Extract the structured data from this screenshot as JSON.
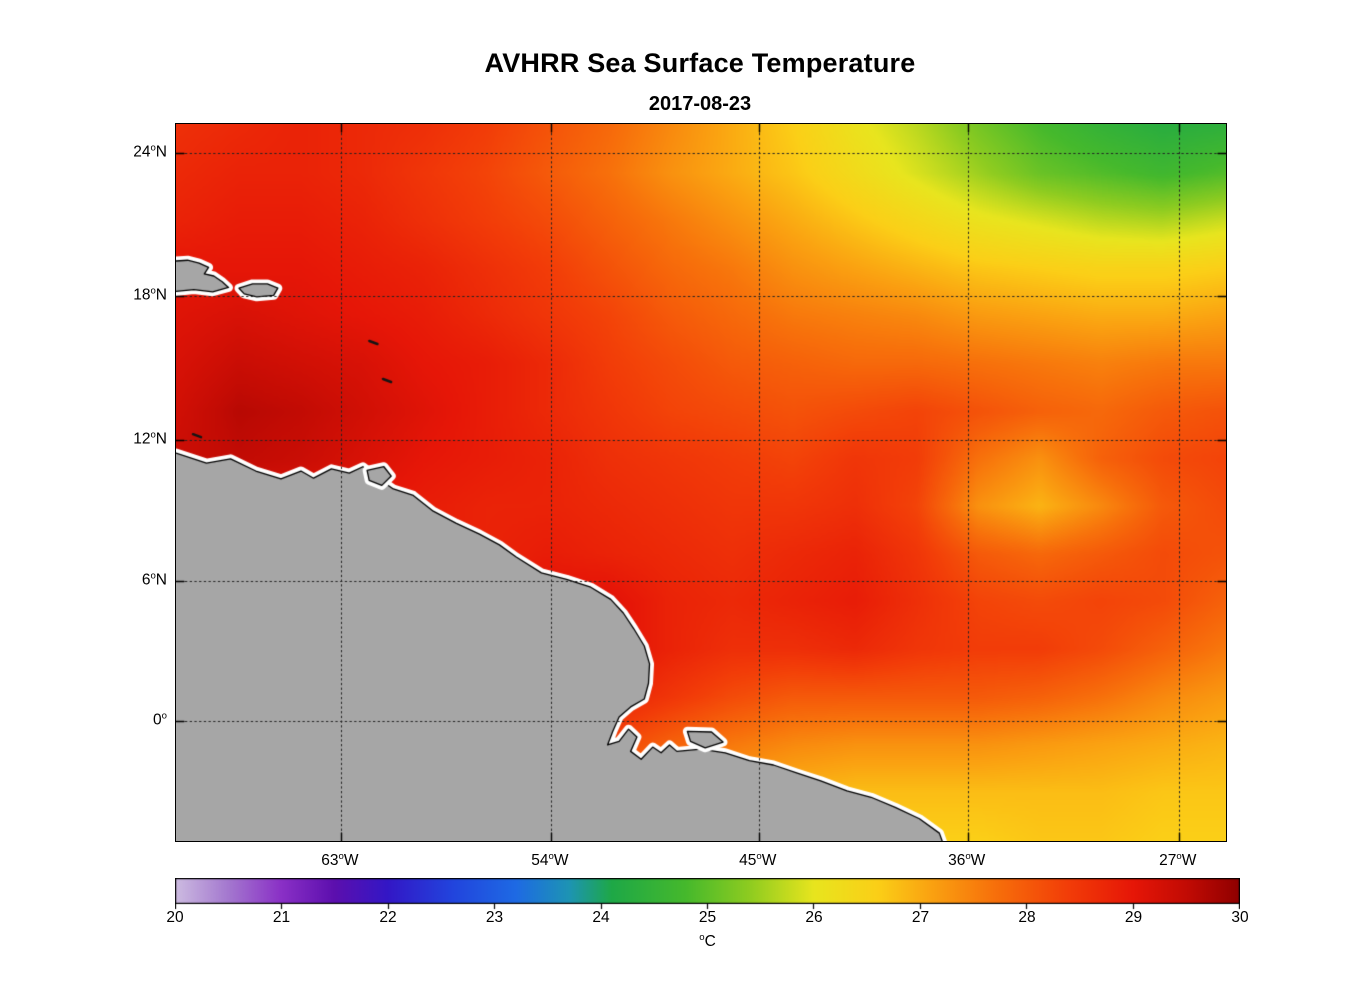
{
  "title": "AVHRR Sea Surface Temperature",
  "subtitle": "2017-08-23",
  "axes": {
    "lat_ticks": [
      {
        "num": "24",
        "deg": "o",
        "hemi": "N",
        "frac": 0.041
      },
      {
        "num": "18",
        "deg": "o",
        "hemi": "N",
        "frac": 0.24
      },
      {
        "num": "12",
        "deg": "o",
        "hemi": "N",
        "frac": 0.441
      },
      {
        "num": "6",
        "deg": "o",
        "hemi": "N",
        "frac": 0.637
      },
      {
        "num": "0",
        "deg": "o",
        "hemi": "",
        "frac": 0.833
      }
    ],
    "lon_ticks": [
      {
        "num": "63",
        "deg": "o",
        "hemi": "W",
        "frac": 0.157
      },
      {
        "num": "54",
        "deg": "o",
        "hemi": "W",
        "frac": 0.357
      },
      {
        "num": "45",
        "deg": "o",
        "hemi": "W",
        "frac": 0.555
      },
      {
        "num": "36",
        "deg": "o",
        "hemi": "W",
        "frac": 0.754
      },
      {
        "num": "27",
        "deg": "o",
        "hemi": "W",
        "frac": 0.955
      }
    ]
  },
  "colorbar": {
    "ticks": [
      "20",
      "21",
      "22",
      "23",
      "24",
      "25",
      "26",
      "27",
      "28",
      "29",
      "30"
    ],
    "unit_deg": "o",
    "unit_letter": "C",
    "range": [
      20,
      30
    ],
    "stops": [
      {
        "t": 20.0,
        "c": "#cdbce1"
      },
      {
        "t": 20.5,
        "c": "#a478cf"
      },
      {
        "t": 21.0,
        "c": "#8a30c6"
      },
      {
        "t": 21.5,
        "c": "#5c0fae"
      },
      {
        "t": 22.0,
        "c": "#3317c6"
      },
      {
        "t": 22.6,
        "c": "#2244dd"
      },
      {
        "t": 23.2,
        "c": "#1e6ae4"
      },
      {
        "t": 23.7,
        "c": "#1d94b4"
      },
      {
        "t": 24.1,
        "c": "#1ea847"
      },
      {
        "t": 24.8,
        "c": "#46b92c"
      },
      {
        "t": 25.4,
        "c": "#8fcc20"
      },
      {
        "t": 26.0,
        "c": "#e8e51e"
      },
      {
        "t": 26.6,
        "c": "#fbcf17"
      },
      {
        "t": 27.1,
        "c": "#faa211"
      },
      {
        "t": 27.7,
        "c": "#f7700b"
      },
      {
        "t": 28.4,
        "c": "#f23c08"
      },
      {
        "t": 29.0,
        "c": "#e61607"
      },
      {
        "t": 29.5,
        "c": "#c20b04"
      },
      {
        "t": 30.0,
        "c": "#8f0000"
      }
    ]
  },
  "chart_data": {
    "type": "heatmap",
    "title": "AVHRR Sea Surface Temperature",
    "subtitle": "2017-08-23",
    "lon_ticks_deg_w": [
      63,
      54,
      45,
      36,
      27
    ],
    "lat_ticks_deg_n": [
      24,
      18,
      12,
      6,
      0
    ],
    "lon_range_deg_w": [
      70.2,
      25.1
    ],
    "lat_range_deg_n": [
      -5.3,
      25.3
    ],
    "colorbar_range": [
      20,
      30
    ],
    "colorbar_label": "°C",
    "colorbar_tick_values": [
      20,
      21,
      22,
      23,
      24,
      25,
      26,
      27,
      28,
      29,
      30
    ],
    "grid": "dotted",
    "land_color": "#a6a6a6",
    "coast_halo_color": "#ffffff",
    "sst_grid_c": {
      "rows": 16,
      "cols": 18,
      "values": [
        [
          28.6,
          28.7,
          28.8,
          28.7,
          28.6,
          28.4,
          28.1,
          27.8,
          27.4,
          27.0,
          26.6,
          26.1,
          25.7,
          25.2,
          24.8,
          24.5,
          24.3,
          24.4
        ],
        [
          28.7,
          28.8,
          28.8,
          28.7,
          28.5,
          28.3,
          28.0,
          27.7,
          27.3,
          27.0,
          26.7,
          26.3,
          25.9,
          25.5,
          25.1,
          24.9,
          24.7,
          24.9
        ],
        [
          28.8,
          28.9,
          28.9,
          28.8,
          28.6,
          28.4,
          28.2,
          27.9,
          27.6,
          27.3,
          27.0,
          26.7,
          26.4,
          26.1,
          25.9,
          25.7,
          25.6,
          25.8
        ],
        [
          29.0,
          29.0,
          29.0,
          28.9,
          28.8,
          28.6,
          28.4,
          28.1,
          27.8,
          27.6,
          27.3,
          27.1,
          26.9,
          26.7,
          26.6,
          26.5,
          26.5,
          26.6
        ],
        [
          29.1,
          29.2,
          29.1,
          29.0,
          28.9,
          28.7,
          28.5,
          28.3,
          28.0,
          27.8,
          27.6,
          27.5,
          27.4,
          27.2,
          27.1,
          27.0,
          27.0,
          27.1
        ],
        [
          29.2,
          29.4,
          29.3,
          29.2,
          29.0,
          28.9,
          28.7,
          28.4,
          28.2,
          28.0,
          27.9,
          27.8,
          27.8,
          27.7,
          27.6,
          27.5,
          27.6,
          27.6
        ],
        [
          29.3,
          29.6,
          29.5,
          29.3,
          29.1,
          28.9,
          28.7,
          28.5,
          28.3,
          28.2,
          28.1,
          28.2,
          28.3,
          28.1,
          27.9,
          27.8,
          28.0,
          28.1
        ],
        [
          29.4,
          29.5,
          29.4,
          29.2,
          29.0,
          28.9,
          28.8,
          28.6,
          28.5,
          28.4,
          28.3,
          28.5,
          28.4,
          27.7,
          27.3,
          27.9,
          28.2,
          28.3
        ],
        [
          29.2,
          29.2,
          29.1,
          29.0,
          28.9,
          28.8,
          28.8,
          28.7,
          28.6,
          28.5,
          28.5,
          28.6,
          28.3,
          27.3,
          26.9,
          27.4,
          28.0,
          28.2
        ],
        [
          28.8,
          28.8,
          28.8,
          28.9,
          28.9,
          28.8,
          28.9,
          28.8,
          28.7,
          28.6,
          28.7,
          28.8,
          28.5,
          28.0,
          27.8,
          28.0,
          28.2,
          28.1
        ],
        [
          28.5,
          28.5,
          28.6,
          28.7,
          28.8,
          28.8,
          29.1,
          29.1,
          28.8,
          28.7,
          28.8,
          28.9,
          28.6,
          28.3,
          28.2,
          28.3,
          28.2,
          27.9
        ],
        [
          28.3,
          28.3,
          28.4,
          28.5,
          28.6,
          28.8,
          29.2,
          29.1,
          28.8,
          28.6,
          28.6,
          28.7,
          28.5,
          28.4,
          28.4,
          28.2,
          27.9,
          27.6
        ],
        [
          28.2,
          28.2,
          28.3,
          28.4,
          28.5,
          28.8,
          29.0,
          28.8,
          28.5,
          28.2,
          28.0,
          28.0,
          28.0,
          28.0,
          27.9,
          27.7,
          27.4,
          27.2
        ],
        [
          28.0,
          28.0,
          28.1,
          28.2,
          28.3,
          28.5,
          28.6,
          28.3,
          27.9,
          27.6,
          27.4,
          27.3,
          27.3,
          27.3,
          27.2,
          27.1,
          27.0,
          26.9
        ],
        [
          27.8,
          27.8,
          27.9,
          28.0,
          28.1,
          28.2,
          28.1,
          27.8,
          27.4,
          27.1,
          26.9,
          26.8,
          26.8,
          26.8,
          26.8,
          26.8,
          26.7,
          26.7
        ],
        [
          27.6,
          27.6,
          27.7,
          27.8,
          27.9,
          27.9,
          27.8,
          27.5,
          27.1,
          26.8,
          26.6,
          26.6,
          26.6,
          26.6,
          26.7,
          26.7,
          26.6,
          26.6
        ]
      ]
    },
    "land_polygons": [
      [
        [
          -0.03,
          0.459
        ],
        [
          0.0,
          0.459
        ],
        [
          0.029,
          0.473
        ],
        [
          0.052,
          0.467
        ],
        [
          0.076,
          0.484
        ],
        [
          0.1,
          0.495
        ],
        [
          0.119,
          0.484
        ],
        [
          0.131,
          0.494
        ],
        [
          0.148,
          0.481
        ],
        [
          0.165,
          0.487
        ],
        [
          0.178,
          0.478
        ],
        [
          0.188,
          0.49
        ],
        [
          0.207,
          0.509
        ],
        [
          0.226,
          0.518
        ],
        [
          0.245,
          0.54
        ],
        [
          0.267,
          0.557
        ],
        [
          0.289,
          0.572
        ],
        [
          0.308,
          0.587
        ],
        [
          0.324,
          0.604
        ],
        [
          0.348,
          0.626
        ],
        [
          0.372,
          0.635
        ],
        [
          0.395,
          0.646
        ],
        [
          0.414,
          0.663
        ],
        [
          0.426,
          0.682
        ],
        [
          0.436,
          0.704
        ],
        [
          0.446,
          0.728
        ],
        [
          0.451,
          0.753
        ],
        [
          0.45,
          0.78
        ],
        [
          0.446,
          0.802
        ],
        [
          0.433,
          0.813
        ],
        [
          0.422,
          0.827
        ],
        [
          0.416,
          0.847
        ],
        [
          0.411,
          0.866
        ],
        [
          0.422,
          0.861
        ],
        [
          0.431,
          0.844
        ],
        [
          0.439,
          0.855
        ],
        [
          0.433,
          0.875
        ],
        [
          0.443,
          0.886
        ],
        [
          0.454,
          0.869
        ],
        [
          0.462,
          0.877
        ],
        [
          0.47,
          0.866
        ],
        [
          0.477,
          0.875
        ],
        [
          0.5,
          0.872
        ],
        [
          0.523,
          0.877
        ],
        [
          0.546,
          0.888
        ],
        [
          0.569,
          0.894
        ],
        [
          0.591,
          0.905
        ],
        [
          0.614,
          0.916
        ],
        [
          0.639,
          0.93
        ],
        [
          0.662,
          0.939
        ],
        [
          0.685,
          0.953
        ],
        [
          0.708,
          0.969
        ],
        [
          0.727,
          0.989
        ],
        [
          0.737,
          1.03
        ],
        [
          -0.03,
          1.03
        ]
      ],
      [
        [
          -0.03,
          0.194
        ],
        [
          0.011,
          0.19
        ],
        [
          0.022,
          0.194
        ],
        [
          0.031,
          0.2
        ],
        [
          0.027,
          0.209
        ],
        [
          0.036,
          0.212
        ],
        [
          0.044,
          0.22
        ],
        [
          0.05,
          0.228
        ],
        [
          0.035,
          0.234
        ],
        [
          0.017,
          0.231
        ],
        [
          -0.03,
          0.238
        ]
      ],
      [
        [
          0.06,
          0.229
        ],
        [
          0.073,
          0.223
        ],
        [
          0.087,
          0.223
        ],
        [
          0.097,
          0.229
        ],
        [
          0.093,
          0.239
        ],
        [
          0.077,
          0.241
        ],
        [
          0.065,
          0.237
        ]
      ],
      [
        [
          0.182,
          0.483
        ],
        [
          0.198,
          0.478
        ],
        [
          0.205,
          0.491
        ],
        [
          0.196,
          0.504
        ],
        [
          0.184,
          0.497
        ]
      ],
      [
        [
          0.487,
          0.847
        ],
        [
          0.51,
          0.848
        ],
        [
          0.521,
          0.862
        ],
        [
          0.504,
          0.87
        ],
        [
          0.49,
          0.861
        ]
      ]
    ],
    "island_specks": [
      [
        0.188,
        0.304
      ],
      [
        0.201,
        0.357
      ],
      [
        0.02,
        0.434
      ]
    ]
  }
}
